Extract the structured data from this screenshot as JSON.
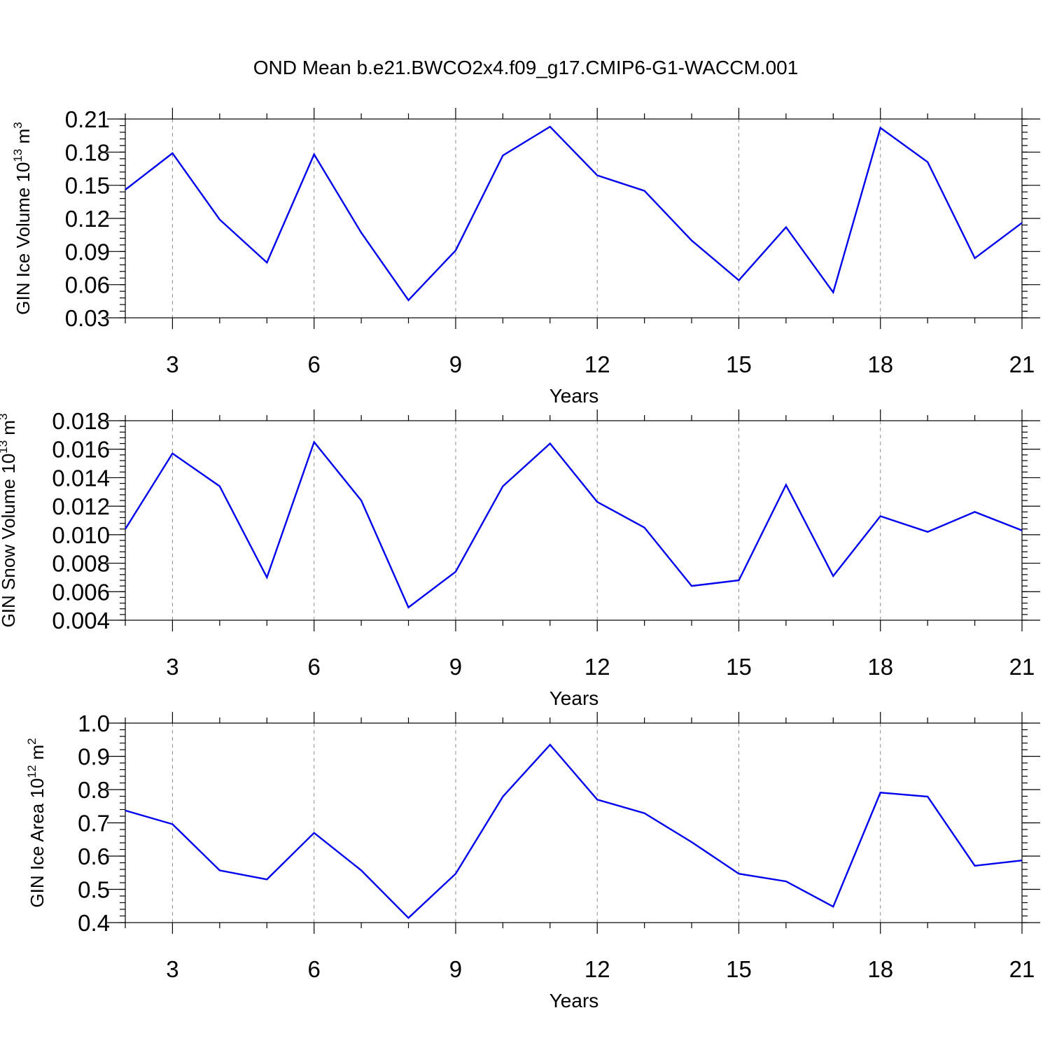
{
  "figure": {
    "title": "OND Mean b.e21.BWCO2x4.f09_g17.CMIP6-G1-WACCM.001",
    "line_color": "#0000ee",
    "grid_color": "#8c8c8c"
  },
  "chart_data": [
    {
      "type": "line",
      "ylabel_main": "GIN Ice Volume 10",
      "ylabel_exp": "13",
      "ylabel_unit": " m",
      "ylabel_unit_exp": "3",
      "xlabel": "Years",
      "xlim": [
        2,
        21
      ],
      "ylim": [
        0.03,
        0.21
      ],
      "x_ticks": [
        3,
        6,
        9,
        12,
        15,
        18,
        21
      ],
      "x_tick_labels": [
        "3",
        "6",
        "9",
        "12",
        "15",
        "18",
        "21"
      ],
      "y_ticks": [
        0.03,
        0.06,
        0.09,
        0.12,
        0.15,
        0.18,
        0.21
      ],
      "y_tick_labels": [
        "0.03",
        "0.06",
        "0.09",
        "0.12",
        "0.15",
        "0.18",
        "0.21"
      ],
      "y_minor_step": 0.006,
      "x": [
        2,
        3,
        4,
        5,
        6,
        7,
        8,
        9,
        10,
        11,
        12,
        13,
        14,
        15,
        16,
        17,
        18,
        19,
        20,
        21
      ],
      "values": [
        0.146,
        0.179,
        0.119,
        0.08,
        0.178,
        0.107,
        0.046,
        0.091,
        0.177,
        0.203,
        0.159,
        0.145,
        0.1,
        0.064,
        0.112,
        0.053,
        0.202,
        0.171,
        0.084,
        0.116
      ]
    },
    {
      "type": "line",
      "ylabel_main": "GIN Snow Volume 10",
      "ylabel_exp": "13",
      "ylabel_unit": " m",
      "ylabel_unit_exp": "3",
      "xlabel": "Years",
      "xlim": [
        2,
        21
      ],
      "ylim": [
        0.004,
        0.018
      ],
      "x_ticks": [
        3,
        6,
        9,
        12,
        15,
        18,
        21
      ],
      "x_tick_labels": [
        "3",
        "6",
        "9",
        "12",
        "15",
        "18",
        "21"
      ],
      "y_ticks": [
        0.004,
        0.006,
        0.008,
        0.01,
        0.012,
        0.014,
        0.016,
        0.018
      ],
      "y_tick_labels": [
        "0.004",
        "0.006",
        "0.008",
        "0.010",
        "0.012",
        "0.014",
        "0.016",
        "0.018"
      ],
      "y_minor_step": 0.0004,
      "x": [
        2,
        3,
        4,
        5,
        6,
        7,
        8,
        9,
        10,
        11,
        12,
        13,
        14,
        15,
        16,
        17,
        18,
        19,
        20,
        21
      ],
      "values": [
        0.0104,
        0.0157,
        0.0134,
        0.007,
        0.0165,
        0.0124,
        0.0049,
        0.0074,
        0.0134,
        0.0164,
        0.0123,
        0.0105,
        0.0064,
        0.0068,
        0.0135,
        0.0071,
        0.0113,
        0.0102,
        0.0116,
        0.0103
      ]
    },
    {
      "type": "line",
      "ylabel_main": "GIN Ice Area 10",
      "ylabel_exp": "12",
      "ylabel_unit": " m",
      "ylabel_unit_exp": "2",
      "xlabel": "Years",
      "xlim": [
        2,
        21
      ],
      "ylim": [
        0.4,
        1.0
      ],
      "x_ticks": [
        3,
        6,
        9,
        12,
        15,
        18,
        21
      ],
      "x_tick_labels": [
        "3",
        "6",
        "9",
        "12",
        "15",
        "18",
        "21"
      ],
      "y_ticks": [
        0.4,
        0.5,
        0.6,
        0.7,
        0.8,
        0.9,
        1.0
      ],
      "y_tick_labels": [
        "0.4",
        "0.5",
        "0.6",
        "0.7",
        "0.8",
        "0.9",
        "1.0"
      ],
      "y_minor_step": 0.02,
      "x": [
        2,
        3,
        4,
        5,
        6,
        7,
        8,
        9,
        10,
        11,
        12,
        13,
        14,
        15,
        16,
        17,
        18,
        19,
        20,
        21
      ],
      "values": [
        0.737,
        0.696,
        0.557,
        0.53,
        0.67,
        0.557,
        0.414,
        0.547,
        0.779,
        0.935,
        0.77,
        0.729,
        0.642,
        0.547,
        0.524,
        0.448,
        0.791,
        0.779,
        0.571,
        0.587
      ]
    }
  ]
}
